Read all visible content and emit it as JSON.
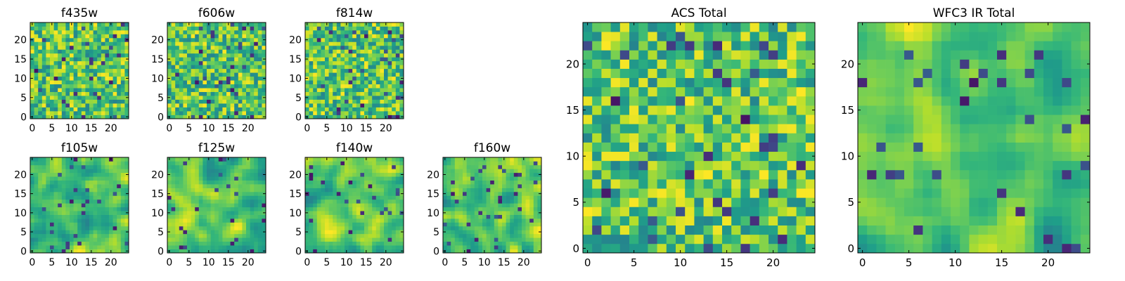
{
  "colors": {
    "colormap": "viridis",
    "low": "#440154",
    "mid": "#21908d",
    "high": "#fde725",
    "axes_edge": "#000000"
  },
  "chart_data": [
    {
      "type": "heatmap",
      "title": "f435w",
      "grid_size": 25,
      "xlim": [
        0,
        24
      ],
      "ylim": [
        0,
        24
      ],
      "xticks": [
        0,
        5,
        10,
        15,
        20
      ],
      "yticks": [
        0,
        5,
        10,
        15,
        20
      ],
      "pixel_level": "fine-grained noise, mostly green-yellow"
    },
    {
      "type": "heatmap",
      "title": "f606w",
      "grid_size": 25,
      "xlim": [
        0,
        24
      ],
      "ylim": [
        0,
        24
      ],
      "xticks": [
        0,
        5,
        10,
        15,
        20
      ],
      "yticks": [
        0,
        5,
        10,
        15,
        20
      ],
      "pixel_level": "fine-grained noise, mostly green-yellow"
    },
    {
      "type": "heatmap",
      "title": "f814w",
      "grid_size": 25,
      "xlim": [
        0,
        24
      ],
      "ylim": [
        0,
        24
      ],
      "xticks": [
        0,
        5,
        10,
        15,
        20
      ],
      "yticks": [
        0,
        5,
        10,
        15,
        20
      ],
      "pixel_level": "fine-grained noise, mostly green-yellow"
    },
    {
      "type": "heatmap",
      "title": "f105w",
      "grid_size": 25,
      "xlim": [
        0,
        24
      ],
      "ylim": [
        0,
        24
      ],
      "xticks": [
        0,
        5,
        10,
        15,
        20
      ],
      "yticks": [
        0,
        5,
        10,
        15,
        20
      ],
      "pixel_level": "smooth blobs, yellow-green with dark spots"
    },
    {
      "type": "heatmap",
      "title": "f125w",
      "grid_size": 25,
      "xlim": [
        0,
        24
      ],
      "ylim": [
        0,
        24
      ],
      "xticks": [
        0,
        5,
        10,
        15,
        20
      ],
      "yticks": [
        0,
        5,
        10,
        15,
        20
      ],
      "pixel_level": "smooth blobs, yellow-green with dark spots"
    },
    {
      "type": "heatmap",
      "title": "f140w",
      "grid_size": 25,
      "xlim": [
        0,
        24
      ],
      "ylim": [
        0,
        24
      ],
      "xticks": [
        0,
        5,
        10,
        15,
        20
      ],
      "yticks": [
        0,
        5,
        10,
        15,
        20
      ],
      "pixel_level": "smooth blobs, yellow-green with dark spots"
    },
    {
      "type": "heatmap",
      "title": "f160w",
      "grid_size": 25,
      "xlim": [
        0,
        24
      ],
      "ylim": [
        0,
        24
      ],
      "xticks": [
        0,
        5,
        10,
        15,
        20
      ],
      "yticks": [
        0,
        5,
        10,
        15,
        20
      ],
      "pixel_level": "smooth blobs, green-blue with dark spots"
    },
    {
      "type": "heatmap",
      "title": "ACS Total",
      "grid_size": 25,
      "xlim": [
        0,
        24
      ],
      "ylim": [
        0,
        24
      ],
      "xticks": [
        0,
        5,
        10,
        15,
        20
      ],
      "yticks": [
        0,
        5,
        10,
        15,
        20
      ],
      "pixel_level": "noise, mostly light green/yellow"
    },
    {
      "type": "heatmap",
      "title": "WFC3 IR Total",
      "grid_size": 25,
      "xlim": [
        0,
        24
      ],
      "ylim": [
        0,
        24
      ],
      "xticks": [
        0,
        5,
        10,
        15,
        20
      ],
      "yticks": [
        0,
        5,
        10,
        15,
        20
      ],
      "pixel_level": "smooth, green with dark corners"
    }
  ]
}
